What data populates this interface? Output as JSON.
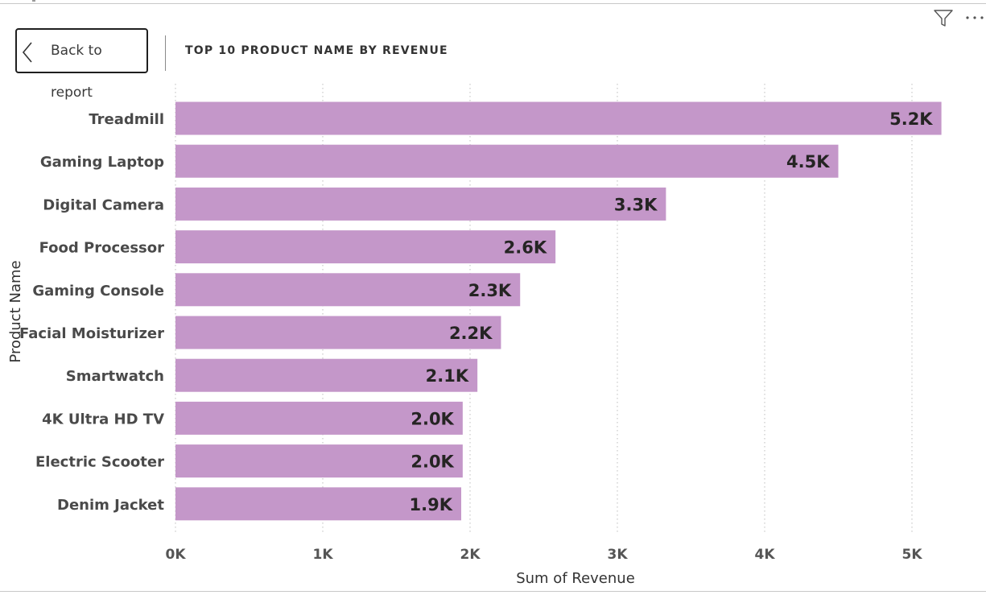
{
  "header": {
    "back_label": "Back to report",
    "title": "TOP 10 PRODUCT NAME BY REVENUE"
  },
  "toolbar": {
    "filter_icon": "filter-icon",
    "more_icon": "more-options-icon"
  },
  "chart_data": {
    "type": "bar",
    "orientation": "horizontal",
    "categories": [
      "Treadmill",
      "Gaming Laptop",
      "Digital Camera",
      "Food Processor",
      "Gaming Console",
      "Facial Moisturizer",
      "Smartwatch",
      "4K Ultra HD TV",
      "Electric Scooter",
      "Denim Jacket"
    ],
    "values": [
      5200,
      4500,
      3330,
      2580,
      2340,
      2210,
      2050,
      1950,
      1950,
      1940
    ],
    "data_labels": [
      "5.2K",
      "4.5K",
      "3.3K",
      "2.6K",
      "2.3K",
      "2.2K",
      "2.1K",
      "2.0K",
      "2.0K",
      "1.9K"
    ],
    "xlabel": "Sum of Revenue",
    "ylabel": "Product Name",
    "xlim": [
      0,
      5200
    ],
    "x_ticks": [
      0,
      1000,
      2000,
      3000,
      4000,
      5000
    ],
    "x_tick_labels": [
      "0K",
      "1K",
      "2K",
      "3K",
      "4K",
      "5K"
    ],
    "grid": "vertical-dotted",
    "bar_color": "#c497c9",
    "legend": "none"
  }
}
